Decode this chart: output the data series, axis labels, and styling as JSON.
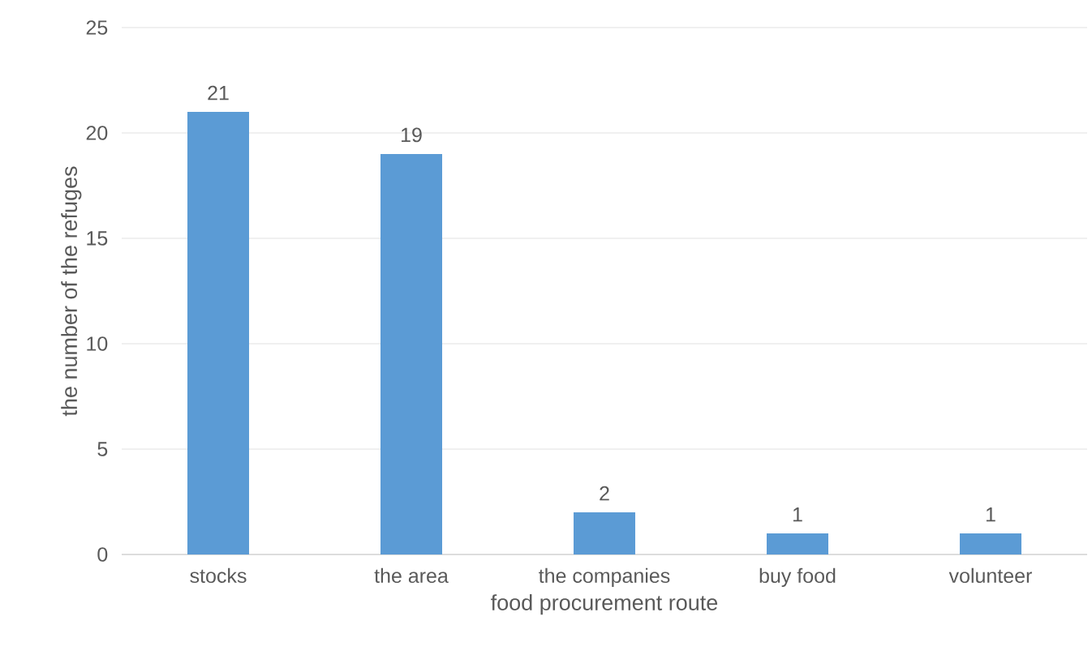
{
  "chart_data": {
    "type": "bar",
    "xlabel": "food procurement route",
    "ylabel": "the number of the refuges",
    "categories": [
      "stocks",
      "the area",
      "the companies",
      "buy food",
      "volunteer"
    ],
    "values": [
      21,
      19,
      2,
      1,
      1
    ],
    "color": "#5b9bd5",
    "ylim": [
      0,
      25
    ],
    "yticks": [
      0,
      5,
      10,
      15,
      20,
      25
    ],
    "grid": "y",
    "data_labels": true
  }
}
